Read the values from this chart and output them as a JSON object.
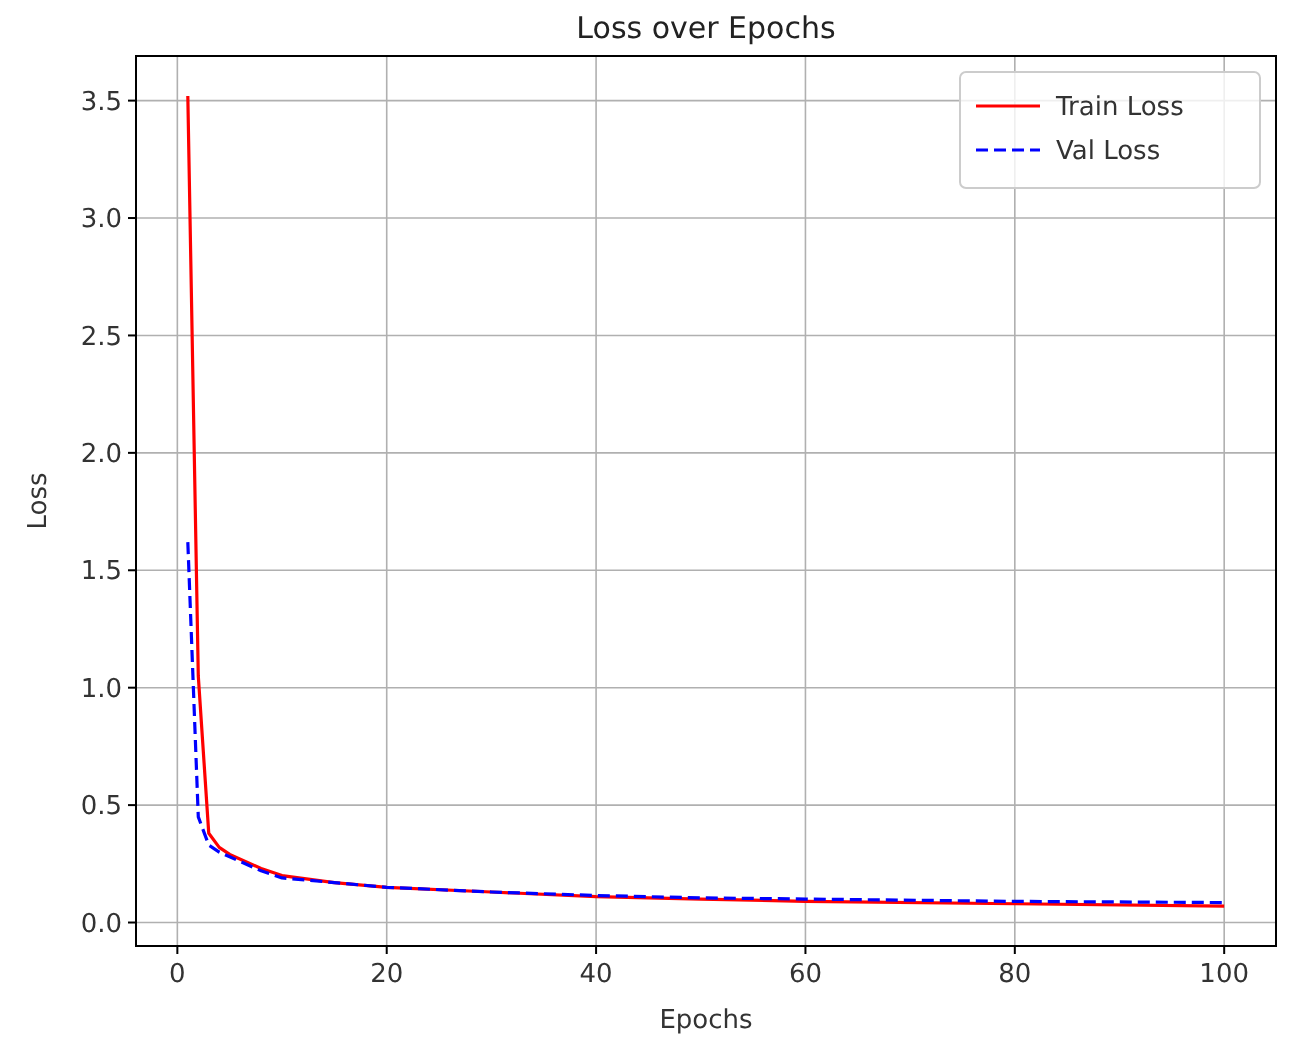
{
  "chart_data": {
    "type": "line",
    "title": "Loss over Epochs",
    "xlabel": "Epochs",
    "ylabel": "Loss",
    "xlim": [
      -3.95,
      104.95
    ],
    "ylim": [
      -0.1,
      3.69
    ],
    "xticks": [
      0,
      20,
      40,
      60,
      80,
      100
    ],
    "yticks": [
      {
        "value": 0,
        "label": "0.0"
      },
      {
        "value": 0.5,
        "label": "0.5"
      },
      {
        "value": 1,
        "label": "1.0"
      },
      {
        "value": 1.5,
        "label": "1.5"
      },
      {
        "value": 2,
        "label": "2.0"
      },
      {
        "value": 2.5,
        "label": "2.5"
      },
      {
        "value": 3,
        "label": "3.0"
      },
      {
        "value": 3.5,
        "label": "3.5"
      }
    ],
    "grid": true,
    "legend": "top right",
    "series": [
      {
        "name": "Train Loss",
        "color": "#ff0000",
        "line_style": "solid",
        "x": [
          1,
          2,
          3,
          4,
          5,
          8,
          10,
          15,
          20,
          30,
          40,
          50,
          60,
          80,
          100
        ],
        "values": [
          3.52,
          1.05,
          0.38,
          0.32,
          0.29,
          0.23,
          0.2,
          0.17,
          0.15,
          0.13,
          0.11,
          0.1,
          0.09,
          0.08,
          0.07
        ]
      },
      {
        "name": "Val Loss",
        "color": "#0000ff",
        "line_style": "dashed",
        "x": [
          1,
          2,
          3,
          4,
          5,
          8,
          10,
          15,
          20,
          30,
          40,
          50,
          60,
          80,
          100
        ],
        "values": [
          1.62,
          0.45,
          0.33,
          0.3,
          0.28,
          0.22,
          0.19,
          0.17,
          0.15,
          0.13,
          0.115,
          0.105,
          0.1,
          0.09,
          0.085
        ]
      }
    ]
  }
}
